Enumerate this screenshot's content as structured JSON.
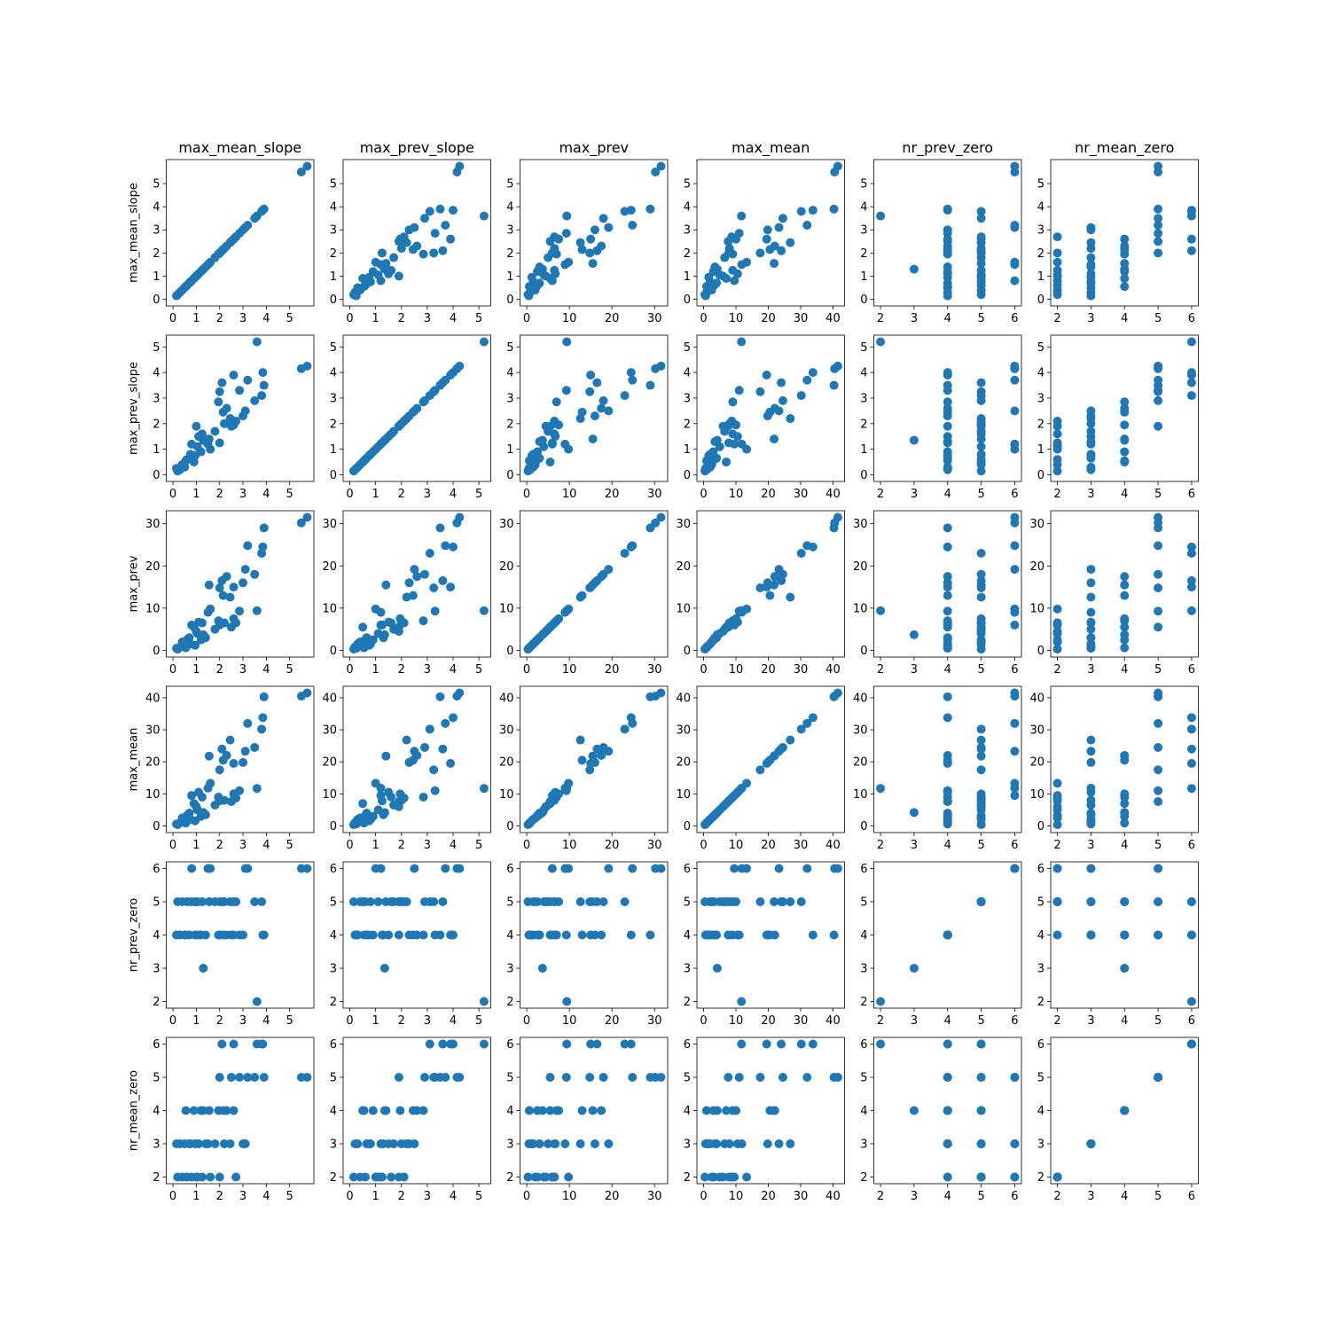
{
  "chart_data": {
    "type": "scatter",
    "variables": [
      "max_mean_slope",
      "max_prev_slope",
      "max_prev",
      "max_mean",
      "nr_prev_zero",
      "nr_mean_zero"
    ],
    "column_titles": [
      "max_mean_slope",
      "max_prev_slope",
      "max_prev",
      "max_mean",
      "nr_prev_zero",
      "nr_mean_zero"
    ],
    "row_labels": [
      "max_mean_slope",
      "max_prev_slope",
      "max_prev",
      "max_mean",
      "nr_prev_zero",
      "nr_mean_zero"
    ],
    "point_color": "#1f77b4",
    "grid": false,
    "records": [
      {
        "max_mean_slope": 5.75,
        "max_prev_slope": 4.25,
        "max_prev": 31.5,
        "max_mean": 41.5,
        "nr_prev_zero": 6,
        "nr_mean_zero": 5
      },
      {
        "max_mean_slope": 5.5,
        "max_prev_slope": 4.15,
        "max_prev": 30.2,
        "max_mean": 40.5,
        "nr_prev_zero": 6,
        "nr_mean_zero": 5
      },
      {
        "max_mean_slope": 3.6,
        "max_prev_slope": 5.2,
        "max_prev": 9.4,
        "max_mean": 11.7,
        "nr_prev_zero": 2,
        "nr_mean_zero": 6
      },
      {
        "max_mean_slope": 3.9,
        "max_prev_slope": 3.5,
        "max_prev": 29.0,
        "max_mean": 40.3,
        "nr_prev_zero": 4,
        "nr_mean_zero": 5
      },
      {
        "max_mean_slope": 3.85,
        "max_prev_slope": 4.0,
        "max_prev": 24.5,
        "max_mean": 33.8,
        "nr_prev_zero": 4,
        "nr_mean_zero": 6
      },
      {
        "max_mean_slope": 3.8,
        "max_prev_slope": 3.1,
        "max_prev": 23.0,
        "max_mean": 30.2,
        "nr_prev_zero": 5,
        "nr_mean_zero": 6
      },
      {
        "max_mean_slope": 3.2,
        "max_prev_slope": 3.7,
        "max_prev": 24.8,
        "max_mean": 32.0,
        "nr_prev_zero": 6,
        "nr_mean_zero": 5
      },
      {
        "max_mean_slope": 3.1,
        "max_prev_slope": 2.5,
        "max_prev": 19.2,
        "max_mean": 23.3,
        "nr_prev_zero": 6,
        "nr_mean_zero": 3
      },
      {
        "max_mean_slope": 2.85,
        "max_prev_slope": 3.3,
        "max_prev": 9.3,
        "max_mean": 11.0,
        "nr_prev_zero": 4,
        "nr_mean_zero": 5
      },
      {
        "max_mean_slope": 2.6,
        "max_prev_slope": 3.9,
        "max_prev": 15.0,
        "max_mean": 19.5,
        "nr_prev_zero": 4,
        "nr_mean_zero": 6
      },
      {
        "max_mean_slope": 2.45,
        "max_prev_slope": 2.2,
        "max_prev": 12.6,
        "max_mean": 26.8,
        "nr_prev_zero": 5,
        "nr_mean_zero": 3
      },
      {
        "max_mean_slope": 2.3,
        "max_prev_slope": 2.6,
        "max_prev": 17.5,
        "max_mean": 22.0,
        "nr_prev_zero": 4,
        "nr_mean_zero": 4
      },
      {
        "max_mean_slope": 2.1,
        "max_prev_slope": 3.6,
        "max_prev": 16.5,
        "max_mean": 24.0,
        "nr_prev_zero": 5,
        "nr_mean_zero": 6
      },
      {
        "max_mean_slope": 2.0,
        "max_prev_slope": 3.25,
        "max_prev": 14.8,
        "max_mean": 17.5,
        "nr_prev_zero": 5,
        "nr_mean_zero": 5
      },
      {
        "max_mean_slope": 2.15,
        "max_prev_slope": 2.45,
        "max_prev": 13.0,
        "max_mean": 20.5,
        "nr_prev_zero": 4,
        "nr_mean_zero": 4
      },
      {
        "max_mean_slope": 2.7,
        "max_prev_slope": 2.1,
        "max_prev": 6.5,
        "max_mean": 8.7,
        "nr_prev_zero": 5,
        "nr_mean_zero": 2
      },
      {
        "max_mean_slope": 2.5,
        "max_prev_slope": 1.9,
        "max_prev": 5.5,
        "max_mean": 7.6,
        "nr_prev_zero": 4,
        "nr_mean_zero": 5
      },
      {
        "max_mean_slope": 2.2,
        "max_prev_slope": 2.0,
        "max_prev": 6.5,
        "max_mean": 8.0,
        "nr_prev_zero": 5,
        "nr_mean_zero": 3
      },
      {
        "max_mean_slope": 2.0,
        "max_prev_slope": 1.25,
        "max_prev": 6.0,
        "max_mean": 7.8,
        "nr_prev_zero": 4,
        "nr_mean_zero": 2
      },
      {
        "max_mean_slope": 1.95,
        "max_prev_slope": 2.85,
        "max_prev": 7.0,
        "max_mean": 9.0,
        "nr_prev_zero": 4,
        "nr_mean_zero": 4
      },
      {
        "max_mean_slope": 1.55,
        "max_prev_slope": 1.4,
        "max_prev": 15.5,
        "max_mean": 21.8,
        "nr_prev_zero": 5,
        "nr_mean_zero": 4
      },
      {
        "max_mean_slope": 1.6,
        "max_prev_slope": 1.0,
        "max_prev": 9.8,
        "max_mean": 13.3,
        "nr_prev_zero": 6,
        "nr_mean_zero": 2
      },
      {
        "max_mean_slope": 1.5,
        "max_prev_slope": 1.2,
        "max_prev": 9.0,
        "max_mean": 11.8,
        "nr_prev_zero": 6,
        "nr_mean_zero": 3
      },
      {
        "max_mean_slope": 1.3,
        "max_prev_slope": 1.35,
        "max_prev": 3.7,
        "max_mean": 4.2,
        "nr_prev_zero": 3,
        "nr_mean_zero": 4
      },
      {
        "max_mean_slope": 1.25,
        "max_prev_slope": 1.6,
        "max_prev": 6.5,
        "max_mean": 9.0,
        "nr_prev_zero": 5,
        "nr_mean_zero": 2
      },
      {
        "max_mean_slope": 1.1,
        "max_prev_slope": 1.5,
        "max_prev": 6.7,
        "max_mean": 10.5,
        "nr_prev_zero": 4,
        "nr_mean_zero": 3
      },
      {
        "max_mean_slope": 1.0,
        "max_prev_slope": 1.9,
        "max_prev": 4.5,
        "max_mean": 6.0,
        "nr_prev_zero": 5,
        "nr_mean_zero": 2
      },
      {
        "max_mean_slope": 0.9,
        "max_prev_slope": 0.5,
        "max_prev": 5.5,
        "max_mean": 7.0,
        "nr_prev_zero": 5,
        "nr_mean_zero": 4
      },
      {
        "max_mean_slope": 0.8,
        "max_prev_slope": 1.2,
        "max_prev": 6.0,
        "max_mean": 9.5,
        "nr_prev_zero": 6,
        "nr_mean_zero": 2
      },
      {
        "max_mean_slope": 0.7,
        "max_prev_slope": 0.65,
        "max_prev": 3.0,
        "max_mean": 4.0,
        "nr_prev_zero": 4,
        "nr_mean_zero": 3
      },
      {
        "max_mean_slope": 0.6,
        "max_prev_slope": 0.6,
        "max_prev": 2.5,
        "max_mean": 3.2,
        "nr_prev_zero": 5,
        "nr_mean_zero": 2
      },
      {
        "max_mean_slope": 0.5,
        "max_prev_slope": 0.3,
        "max_prev": 1.5,
        "max_mean": 2.0,
        "nr_prev_zero": 4,
        "nr_mean_zero": 3
      },
      {
        "max_mean_slope": 0.4,
        "max_prev_slope": 0.4,
        "max_prev": 2.0,
        "max_mean": 2.5,
        "nr_prev_zero": 5,
        "nr_mean_zero": 2
      },
      {
        "max_mean_slope": 0.3,
        "max_prev_slope": 0.2,
        "max_prev": 0.8,
        "max_mean": 1.0,
        "nr_prev_zero": 4,
        "nr_mean_zero": 3
      },
      {
        "max_mean_slope": 0.2,
        "max_prev_slope": 0.15,
        "max_prev": 0.3,
        "max_mean": 0.4,
        "nr_prev_zero": 5,
        "nr_mean_zero": 2
      },
      {
        "max_mean_slope": 0.15,
        "max_prev_slope": 0.25,
        "max_prev": 0.5,
        "max_mean": 0.6,
        "nr_prev_zero": 4,
        "nr_mean_zero": 3
      },
      {
        "max_mean_slope": 1.8,
        "max_prev_slope": 1.7,
        "max_prev": 5.0,
        "max_mean": 6.5,
        "nr_prev_zero": 5,
        "nr_mean_zero": 3
      },
      {
        "max_mean_slope": 1.4,
        "max_prev_slope": 1.3,
        "max_prev": 3.0,
        "max_mean": 3.5,
        "nr_prev_zero": 4,
        "nr_mean_zero": 3
      },
      {
        "max_mean_slope": 1.2,
        "max_prev_slope": 0.9,
        "max_prev": 2.5,
        "max_mean": 3.0,
        "nr_prev_zero": 4,
        "nr_mean_zero": 4
      },
      {
        "max_mean_slope": 0.75,
        "max_prev_slope": 0.8,
        "max_prev": 1.5,
        "max_mean": 2.0,
        "nr_prev_zero": 5,
        "nr_mean_zero": 3
      },
      {
        "max_mean_slope": 3.5,
        "max_prev_slope": 2.9,
        "max_prev": 18.0,
        "max_mean": 24.5,
        "nr_prev_zero": 5,
        "nr_mean_zero": 5
      },
      {
        "max_mean_slope": 3.0,
        "max_prev_slope": 2.3,
        "max_prev": 16.0,
        "max_mean": 19.8,
        "nr_prev_zero": 4,
        "nr_mean_zero": 3
      },
      {
        "max_mean_slope": 2.6,
        "max_prev_slope": 1.95,
        "max_prev": 7.5,
        "max_mean": 10.0,
        "nr_prev_zero": 5,
        "nr_mean_zero": 4
      },
      {
        "max_mean_slope": 1.05,
        "max_prev_slope": 1.1,
        "max_prev": 4.0,
        "max_mean": 5.0,
        "nr_prev_zero": 5,
        "nr_mean_zero": 2
      },
      {
        "max_mean_slope": 0.95,
        "max_prev_slope": 0.75,
        "max_prev": 1.2,
        "max_mean": 1.6,
        "nr_prev_zero": 4,
        "nr_mean_zero": 3
      },
      {
        "max_mean_slope": 0.55,
        "max_prev_slope": 0.55,
        "max_prev": 0.6,
        "max_mean": 0.9,
        "nr_prev_zero": 4,
        "nr_mean_zero": 4
      }
    ]
  }
}
